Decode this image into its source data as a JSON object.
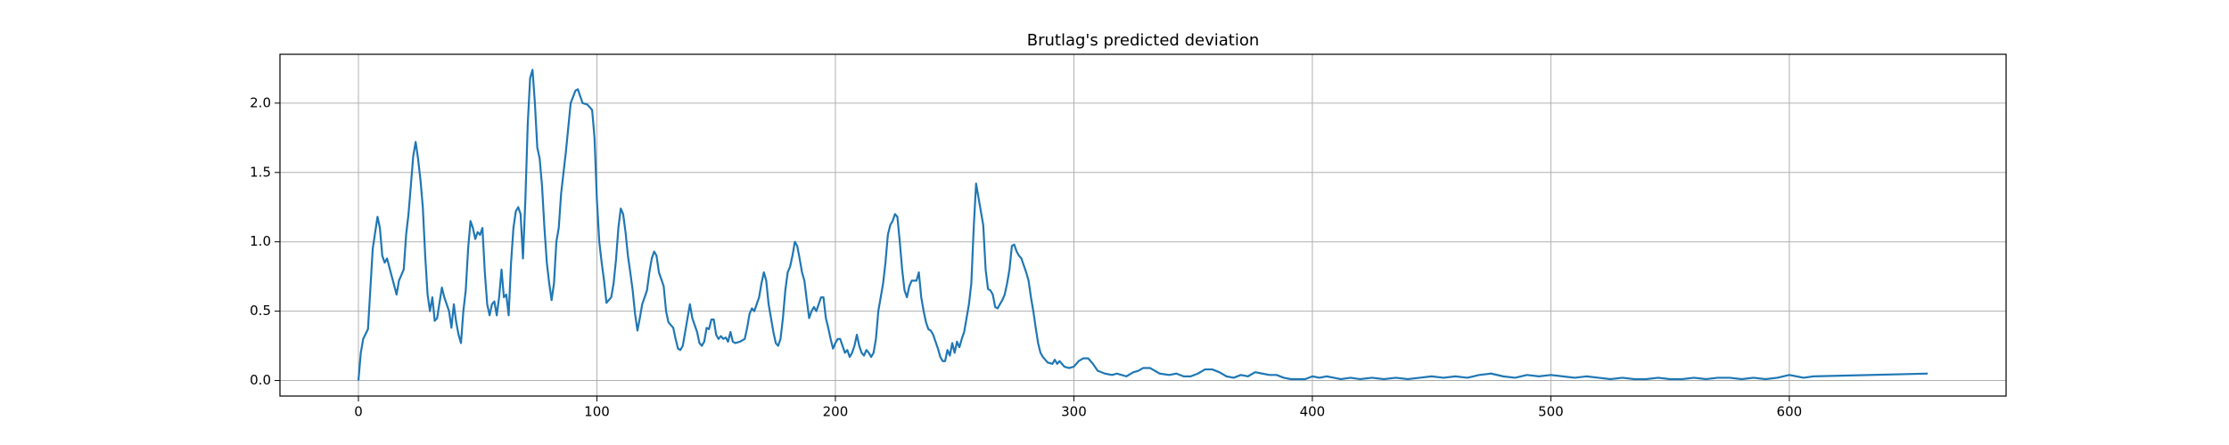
{
  "chart_data": {
    "type": "line",
    "title": "Brutlag's predicted deviation",
    "x": [
      0,
      1,
      2,
      4,
      6,
      8,
      9,
      10,
      11,
      12,
      14,
      16,
      17,
      19,
      20,
      21,
      23,
      24,
      25,
      26,
      27,
      28,
      29,
      30,
      31,
      32,
      33,
      35,
      36,
      38,
      39,
      40,
      41,
      42,
      43,
      44,
      45,
      46,
      47,
      48,
      49,
      50,
      51,
      52,
      53,
      54,
      55,
      56,
      57,
      58,
      59,
      60,
      61,
      62,
      63,
      64,
      65,
      66,
      67,
      68,
      69,
      70,
      71,
      72,
      73,
      74,
      75,
      76,
      77,
      78,
      79,
      80,
      81,
      82,
      83,
      84,
      85,
      87,
      89,
      91,
      92,
      93,
      94,
      96,
      98,
      99,
      100,
      101,
      102,
      103,
      104,
      106,
      107,
      108,
      109,
      110,
      111,
      112,
      113,
      114,
      115,
      116,
      117,
      118,
      119,
      121,
      122,
      123,
      124,
      125,
      126,
      127,
      128,
      129,
      130,
      132,
      133,
      134,
      135,
      136,
      137,
      138,
      139,
      140,
      141,
      142,
      143,
      144,
      145,
      146,
      147,
      148,
      149,
      150,
      151,
      152,
      153,
      154,
      155,
      156,
      157,
      158,
      160,
      162,
      163,
      164,
      165,
      166,
      167,
      168,
      169,
      170,
      171,
      172,
      173,
      174,
      175,
      176,
      177,
      178,
      179,
      180,
      181,
      182,
      183,
      184,
      185,
      186,
      187,
      188,
      189,
      190,
      191,
      192,
      193,
      194,
      195,
      196,
      197,
      198,
      199,
      200,
      201,
      202,
      203,
      204,
      205,
      206,
      207,
      208,
      209,
      210,
      211,
      212,
      213,
      214,
      215,
      216,
      217,
      218,
      219,
      220,
      221,
      222,
      223,
      224,
      225,
      226,
      227,
      228,
      229,
      230,
      231,
      232,
      233,
      234,
      235,
      236,
      237,
      238,
      239,
      240,
      241,
      242,
      243,
      244,
      245,
      246,
      247,
      248,
      249,
      250,
      251,
      252,
      253,
      254,
      255,
      256,
      257,
      258,
      259,
      260,
      261,
      262,
      263,
      264,
      265,
      266,
      267,
      268,
      269,
      270,
      271,
      272,
      273,
      274,
      275,
      276,
      277,
      278,
      279,
      280,
      281,
      282,
      283,
      284,
      285,
      286,
      287,
      288,
      289,
      291,
      292,
      293,
      294,
      296,
      298,
      300,
      302,
      304,
      306,
      308,
      310,
      313,
      316,
      318,
      320,
      322,
      325,
      327,
      329,
      332,
      334,
      336,
      340,
      343,
      346,
      349,
      352,
      355,
      358,
      361,
      364,
      367,
      370,
      373,
      376,
      379,
      382,
      385,
      388,
      391,
      394,
      397,
      400,
      403,
      406,
      409,
      412,
      416,
      420,
      425,
      430,
      435,
      440,
      445,
      450,
      455,
      460,
      465,
      470,
      475,
      480,
      485,
      490,
      495,
      500,
      505,
      510,
      515,
      520,
      525,
      530,
      535,
      540,
      545,
      550,
      555,
      560,
      565,
      570,
      575,
      580,
      585,
      590,
      595,
      600,
      603,
      606,
      610,
      658
    ],
    "values": [
      0,
      0.2,
      0.3,
      0.37,
      0.95,
      1.18,
      1.1,
      0.9,
      0.85,
      0.88,
      0.75,
      0.62,
      0.72,
      0.8,
      1.05,
      1.2,
      1.62,
      1.72,
      1.6,
      1.45,
      1.25,
      0.9,
      0.62,
      0.5,
      0.6,
      0.43,
      0.45,
      0.67,
      0.6,
      0.5,
      0.38,
      0.55,
      0.42,
      0.33,
      0.27,
      0.5,
      0.65,
      0.95,
      1.15,
      1.1,
      1.02,
      1.07,
      1.05,
      1.1,
      0.78,
      0.55,
      0.47,
      0.55,
      0.57,
      0.47,
      0.6,
      0.8,
      0.6,
      0.62,
      0.47,
      0.85,
      1.1,
      1.22,
      1.25,
      1.2,
      0.88,
      1.3,
      1.85,
      2.18,
      2.24,
      2.0,
      1.68,
      1.6,
      1.4,
      1.1,
      0.85,
      0.7,
      0.58,
      0.7,
      1.0,
      1.1,
      1.35,
      1.65,
      2.0,
      2.09,
      2.1,
      2.05,
      2.0,
      1.99,
      1.95,
      1.75,
      1.3,
      1.0,
      0.85,
      0.72,
      0.56,
      0.6,
      0.7,
      0.87,
      1.1,
      1.24,
      1.2,
      1.07,
      0.9,
      0.78,
      0.65,
      0.48,
      0.36,
      0.45,
      0.55,
      0.65,
      0.78,
      0.88,
      0.93,
      0.9,
      0.78,
      0.73,
      0.68,
      0.5,
      0.42,
      0.38,
      0.3,
      0.23,
      0.22,
      0.25,
      0.35,
      0.45,
      0.55,
      0.45,
      0.4,
      0.35,
      0.27,
      0.25,
      0.28,
      0.38,
      0.37,
      0.44,
      0.44,
      0.33,
      0.3,
      0.32,
      0.3,
      0.31,
      0.28,
      0.35,
      0.28,
      0.27,
      0.28,
      0.3,
      0.38,
      0.48,
      0.52,
      0.5,
      0.55,
      0.6,
      0.7,
      0.78,
      0.72,
      0.55,
      0.45,
      0.35,
      0.27,
      0.25,
      0.3,
      0.45,
      0.65,
      0.78,
      0.82,
      0.9,
      1.0,
      0.97,
      0.88,
      0.78,
      0.72,
      0.58,
      0.45,
      0.5,
      0.53,
      0.5,
      0.55,
      0.6,
      0.6,
      0.45,
      0.38,
      0.3,
      0.23,
      0.27,
      0.3,
      0.3,
      0.25,
      0.2,
      0.22,
      0.17,
      0.2,
      0.25,
      0.33,
      0.25,
      0.2,
      0.18,
      0.22,
      0.2,
      0.17,
      0.2,
      0.3,
      0.5,
      0.6,
      0.7,
      0.85,
      1.05,
      1.12,
      1.15,
      1.2,
      1.18,
      1.0,
      0.8,
      0.65,
      0.6,
      0.68,
      0.72,
      0.72,
      0.72,
      0.78,
      0.6,
      0.5,
      0.42,
      0.37,
      0.36,
      0.33,
      0.28,
      0.23,
      0.17,
      0.14,
      0.14,
      0.22,
      0.18,
      0.27,
      0.2,
      0.28,
      0.24,
      0.3,
      0.35,
      0.45,
      0.55,
      0.7,
      1.1,
      1.42,
      1.32,
      1.22,
      1.12,
      0.8,
      0.66,
      0.65,
      0.62,
      0.53,
      0.52,
      0.55,
      0.58,
      0.62,
      0.7,
      0.8,
      0.97,
      0.98,
      0.93,
      0.9,
      0.88,
      0.83,
      0.78,
      0.72,
      0.6,
      0.5,
      0.38,
      0.27,
      0.2,
      0.17,
      0.15,
      0.13,
      0.12,
      0.15,
      0.12,
      0.14,
      0.1,
      0.09,
      0.1,
      0.14,
      0.16,
      0.16,
      0.12,
      0.07,
      0.05,
      0.04,
      0.05,
      0.04,
      0.03,
      0.06,
      0.07,
      0.09,
      0.09,
      0.07,
      0.05,
      0.04,
      0.05,
      0.03,
      0.03,
      0.05,
      0.08,
      0.08,
      0.06,
      0.03,
      0.02,
      0.04,
      0.03,
      0.06,
      0.05,
      0.04,
      0.04,
      0.02,
      0.01,
      0.01,
      0.01,
      0.03,
      0.02,
      0.03,
      0.02,
      0.01,
      0.02,
      0.01,
      0.02,
      0.01,
      0.02,
      0.01,
      0.02,
      0.03,
      0.02,
      0.03,
      0.02,
      0.04,
      0.05,
      0.03,
      0.02,
      0.04,
      0.03,
      0.04,
      0.03,
      0.02,
      0.03,
      0.02,
      0.01,
      0.02,
      0.01,
      0.01,
      0.02,
      0.01,
      0.01,
      0.02,
      0.01,
      0.02,
      0.02,
      0.01,
      0.02,
      0.01,
      0.02,
      0.04,
      0.03,
      0.02,
      0.03,
      0.05
    ],
    "color": "#1f77b4",
    "xlim": [
      -32.9,
      690.9
    ],
    "xticks": [
      0,
      100,
      200,
      300,
      400,
      500,
      600
    ],
    "ylim": [
      -0.112,
      2.352
    ],
    "yticks": [
      {
        "value": 0,
        "label": "0.0"
      },
      {
        "value": 0.5,
        "label": "0.5"
      },
      {
        "value": 1,
        "label": "1.0"
      },
      {
        "value": 1.5,
        "label": "1.5"
      },
      {
        "value": 2,
        "label": "2.0"
      }
    ],
    "grid": true
  }
}
